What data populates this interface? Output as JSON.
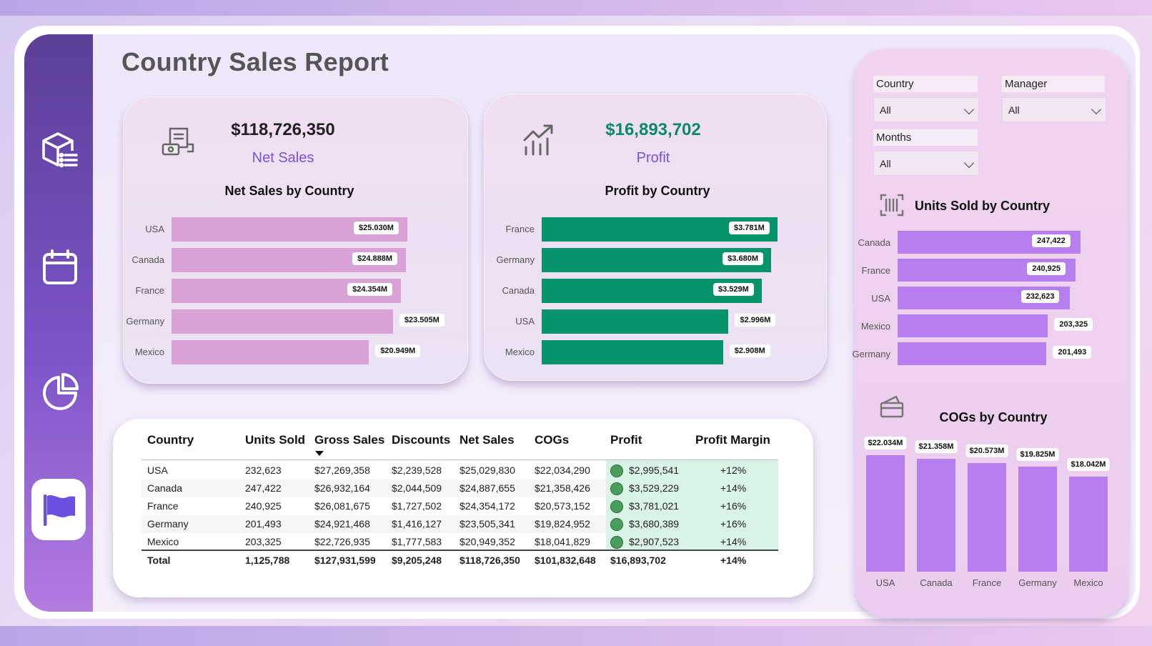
{
  "page_title": "Country Sales Report",
  "sidebar": {
    "items": [
      {
        "icon": "product-list-icon"
      },
      {
        "icon": "calendar-icon"
      },
      {
        "icon": "pie-chart-icon"
      },
      {
        "icon": "flag-icon",
        "active": true
      }
    ]
  },
  "kpi_net_sales": {
    "value": "$118,726,350",
    "label": "Net Sales",
    "icon": "receipt-money-icon",
    "value_color": "#222222",
    "label_color": "#7a4fe0"
  },
  "kpi_profit": {
    "value": "$16,893,702",
    "label": "Profit",
    "icon": "growth-chart-icon",
    "value_color": "#0a8a66",
    "label_color": "#7a4fe0"
  },
  "filters": {
    "country": {
      "label": "Country",
      "value": "All"
    },
    "manager": {
      "label": "Manager",
      "value": "All"
    },
    "months": {
      "label": "Months",
      "value": "All"
    }
  },
  "chart_data": [
    {
      "type": "bar",
      "orientation": "horizontal",
      "title": "Net Sales by Country",
      "categories": [
        "USA",
        "Canada",
        "France",
        "Germany",
        "Mexico"
      ],
      "values": [
        25.03,
        24.888,
        24.354,
        23.505,
        20.949
      ],
      "value_labels": [
        "$25.030M",
        "$24.888M",
        "$24.354M",
        "$23.505M",
        "$20.949M"
      ],
      "unit": "M",
      "color": "#d9a2d6"
    },
    {
      "type": "bar",
      "orientation": "horizontal",
      "title": "Profit by Country",
      "categories": [
        "France",
        "Germany",
        "Canada",
        "USA",
        "Mexico"
      ],
      "values": [
        3.781,
        3.68,
        3.529,
        2.996,
        2.908
      ],
      "value_labels": [
        "$3.781M",
        "$3.680M",
        "$3.529M",
        "$2.996M",
        "$2.908M"
      ],
      "unit": "M",
      "color": "#07936c"
    },
    {
      "type": "bar",
      "orientation": "horizontal",
      "title": "Units Sold by Country",
      "categories": [
        "Canada",
        "France",
        "USA",
        "Mexico",
        "Germany"
      ],
      "values": [
        247422,
        240925,
        232623,
        203325,
        201493
      ],
      "value_labels": [
        "247,422",
        "240,925",
        "232,623",
        "203,325",
        "201,493"
      ],
      "color": "#b77ef0"
    },
    {
      "type": "bar",
      "orientation": "vertical",
      "title": "COGs by Country",
      "categories": [
        "USA",
        "Canada",
        "France",
        "Germany",
        "Mexico"
      ],
      "values": [
        22.034,
        21.358,
        20.573,
        19.825,
        18.042
      ],
      "value_labels": [
        "$22.034M",
        "$21.358M",
        "$20.573M",
        "$19.825M",
        "$18.042M"
      ],
      "unit": "M",
      "color": "#b77ef0"
    },
    {
      "type": "table",
      "columns": [
        "Country",
        "Units Sold",
        "Gross Sales",
        "Discounts",
        "Net Sales",
        "COGs",
        "Profit",
        "Profit Margin"
      ],
      "sort_column": "Gross Sales",
      "sort_direction": "descending",
      "rows": [
        [
          "USA",
          "232,623",
          "$27,269,358",
          "$2,239,528",
          "$25,029,830",
          "$22,034,290",
          "$2,995,541",
          "+12%"
        ],
        [
          "Canada",
          "247,422",
          "$26,932,164",
          "$2,044,509",
          "$24,887,655",
          "$21,358,426",
          "$3,529,229",
          "+14%"
        ],
        [
          "France",
          "240,925",
          "$26,081,675",
          "$1,727,502",
          "$24,354,172",
          "$20,573,152",
          "$3,781,021",
          "+16%"
        ],
        [
          "Germany",
          "201,493",
          "$24,921,468",
          "$1,416,127",
          "$23,505,341",
          "$19,824,952",
          "$3,680,389",
          "+16%"
        ],
        [
          "Mexico",
          "203,325",
          "$22,726,935",
          "$1,777,583",
          "$20,949,352",
          "$18,041,829",
          "$2,907,523",
          "+14%"
        ]
      ],
      "total": [
        "Total",
        "1,125,788",
        "$127,931,599",
        "$9,205,248",
        "$118,726,350",
        "$101,832,648",
        "$16,893,702",
        "+14%"
      ]
    }
  ],
  "icons": {
    "units_section": "barcode-icon",
    "cogs_section": "wallet-icon"
  }
}
